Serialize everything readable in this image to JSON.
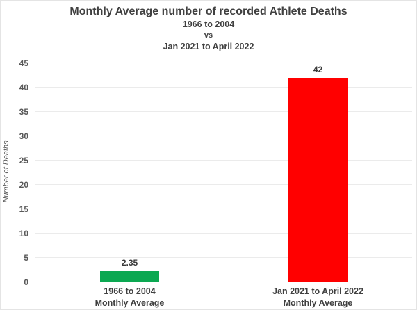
{
  "header": {
    "title": "Monthly Average number of recorded Athlete Deaths",
    "subtitle_line1": "1966 to 2004",
    "subtitle_line2": "vs",
    "subtitle_line3": "Jan 2021 to April 2022"
  },
  "chart_data": {
    "type": "bar",
    "title": "Monthly Average number of recorded Athlete Deaths",
    "subtitle": [
      "1966 to 2004",
      "vs",
      "Jan 2021 to April 2022"
    ],
    "categories": [
      [
        "1966 to 2004",
        "Monthly Average"
      ],
      [
        "Jan 2021 to April 2022",
        "Monthly Average"
      ]
    ],
    "values": [
      2.35,
      42
    ],
    "value_labels": [
      "2.35",
      "42"
    ],
    "bar_colors": [
      "#0ba851",
      "#ff0000"
    ],
    "ylabel": "Number of Deaths",
    "xlabel": "",
    "ylim": [
      0,
      45
    ],
    "yticks": [
      0,
      5,
      10,
      15,
      20,
      25,
      30,
      35,
      40,
      45
    ],
    "grid": "horizontal",
    "legend": "none",
    "gridline_color": "#ebebeb",
    "baseline_color": "#d9d9d9",
    "text_color": "#404040",
    "tick_color": "#595959"
  }
}
